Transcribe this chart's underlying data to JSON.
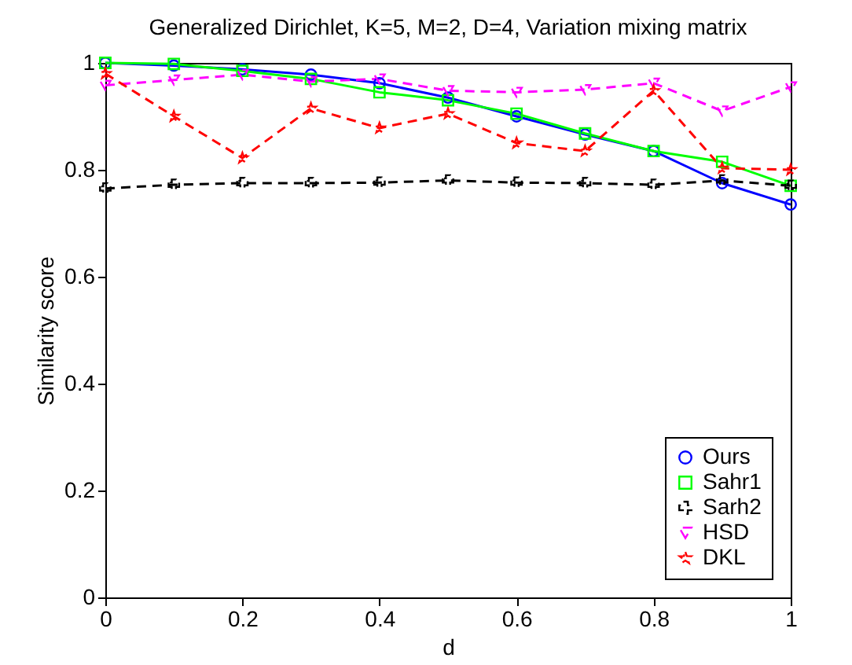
{
  "chart_data": {
    "type": "line",
    "title": "Generalized Dirichlet, K=5, M=2, D=4, Variation mixing matrix",
    "xlabel": "d",
    "ylabel": "Similarity score",
    "x": [
      0,
      0.1,
      0.2,
      0.3,
      0.4,
      0.5,
      0.6,
      0.7,
      0.8,
      0.9,
      1
    ],
    "series": [
      {
        "name": "Ours",
        "color": "#0000ff",
        "marker": "circle",
        "line_style": "solid",
        "values": [
          1.0,
          0.995,
          0.988,
          0.978,
          0.962,
          0.935,
          0.9,
          0.866,
          0.835,
          0.775,
          0.735
        ]
      },
      {
        "name": "Sahr1",
        "color": "#00ff00",
        "marker": "square",
        "line_style": "solid",
        "values": [
          1.0,
          0.998,
          0.985,
          0.97,
          0.945,
          0.93,
          0.905,
          0.868,
          0.835,
          0.815,
          0.77
        ]
      },
      {
        "name": "Sarh2",
        "color": "#000000",
        "marker": "cross",
        "line_style": "dashed",
        "values": [
          0.765,
          0.772,
          0.775,
          0.775,
          0.776,
          0.78,
          0.776,
          0.775,
          0.772,
          0.78,
          0.77
        ]
      },
      {
        "name": "HSD",
        "color": "#ff00ff",
        "marker": "triangle",
        "line_style": "dashed",
        "values": [
          0.958,
          0.968,
          0.978,
          0.965,
          0.97,
          0.948,
          0.945,
          0.95,
          0.962,
          0.91,
          0.955
        ]
      },
      {
        "name": "DKL",
        "color": "#ff0000",
        "marker": "star",
        "line_style": "dashed",
        "values": [
          0.98,
          0.9,
          0.822,
          0.915,
          0.878,
          0.905,
          0.85,
          0.835,
          0.948,
          0.803,
          0.8
        ]
      }
    ],
    "xlim": [
      0,
      1
    ],
    "xticks": [
      0,
      0.2,
      0.4,
      0.6,
      0.8,
      1
    ],
    "ylim": [
      0,
      1
    ],
    "yticks": [
      0,
      0.2,
      0.4,
      0.6,
      0.8,
      1
    ],
    "grid": false,
    "legend": "bottom right"
  }
}
